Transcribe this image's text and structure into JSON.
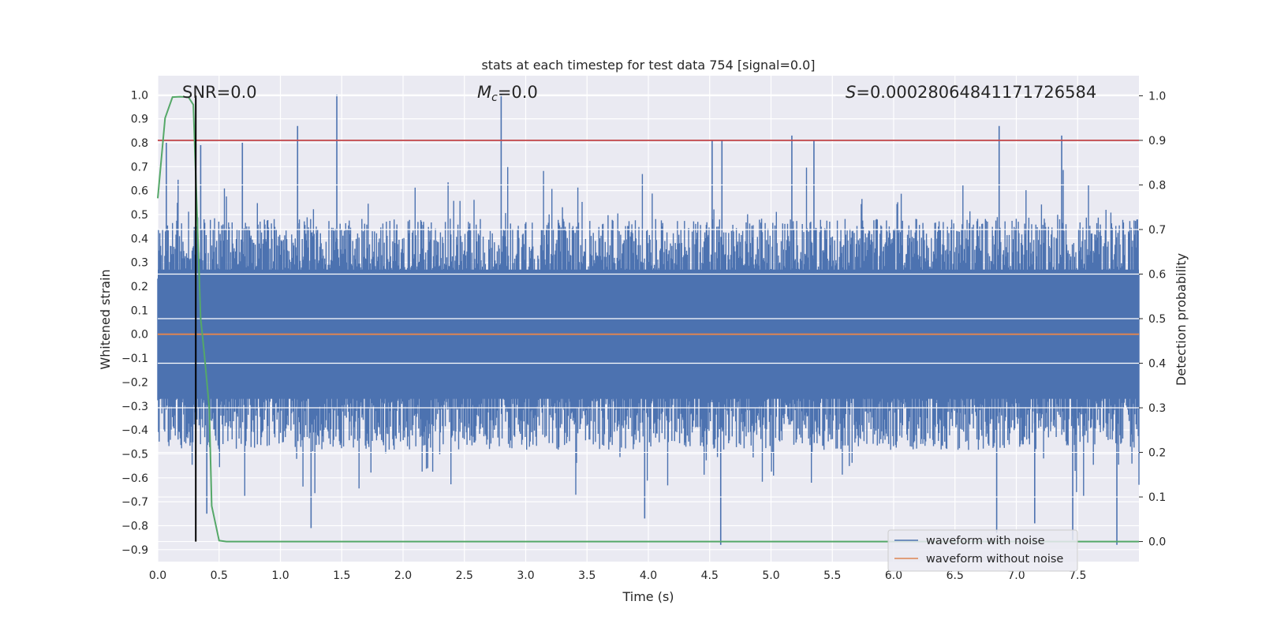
{
  "chart_data": {
    "type": "line",
    "title": "stats at each timestep for test data 754 [signal=0.0]",
    "xlabel": "Time (s)",
    "ylabel": "Whitened strain",
    "ylabel_right": "Detection probability",
    "xlim": [
      0.0,
      8.0
    ],
    "ylim": [
      -0.95,
      1.08
    ],
    "ylim_right": [
      -0.045,
      1.045
    ],
    "x_ticks": [
      "0.0",
      "0.5",
      "1.0",
      "1.5",
      "2.0",
      "2.5",
      "3.0",
      "3.5",
      "4.0",
      "4.5",
      "5.0",
      "5.5",
      "6.0",
      "6.5",
      "7.0",
      "7.5"
    ],
    "y_ticks": [
      "−0.9",
      "−0.8",
      "−0.7",
      "−0.6",
      "−0.5",
      "−0.4",
      "−0.3",
      "−0.2",
      "−0.1",
      "0.0",
      "0.1",
      "0.2",
      "0.3",
      "0.4",
      "0.5",
      "0.6",
      "0.7",
      "0.8",
      "0.9",
      "1.0"
    ],
    "y_ticks_right": [
      "0.0",
      "0.1",
      "0.2",
      "0.3",
      "0.4",
      "0.5",
      "0.6",
      "0.7",
      "0.8",
      "0.9",
      "1.0"
    ],
    "annotations": {
      "snr": "SNR=0.0",
      "mc_symbol": "M",
      "mc_sub": "c",
      "mc_value": "=0.0",
      "s_symbol": "S",
      "s_value": "=0.00028064841171726584"
    },
    "series": [
      {
        "name": "waveform with noise",
        "color": "#4c72b0",
        "axis": "left",
        "envelope": {
          "upper_typical": 0.42,
          "lower_typical": -0.42,
          "max": 1.0,
          "min": -0.9
        },
        "peaks": [
          {
            "x": 1.46,
            "y": 1.0
          },
          {
            "x": 2.8,
            "y": 1.0
          },
          {
            "x": 1.14,
            "y": 0.87
          },
          {
            "x": 6.86,
            "y": 0.87
          },
          {
            "x": 7.37,
            "y": 0.83
          },
          {
            "x": 4.52,
            "y": 0.81
          },
          {
            "x": 4.6,
            "y": 0.81
          },
          {
            "x": 5.17,
            "y": 0.83
          },
          {
            "x": 5.35,
            "y": 0.81
          },
          {
            "x": 0.07,
            "y": 0.8
          },
          {
            "x": 0.35,
            "y": 0.79
          },
          {
            "x": 0.69,
            "y": 0.8
          },
          {
            "x": 4.59,
            "y": -0.88
          },
          {
            "x": 7.82,
            "y": -0.88
          },
          {
            "x": 1.25,
            "y": -0.81
          },
          {
            "x": 6.84,
            "y": -0.83
          },
          {
            "x": 7.46,
            "y": -0.86
          },
          {
            "x": 0.4,
            "y": -0.75
          },
          {
            "x": 3.97,
            "y": -0.77
          },
          {
            "x": 7.15,
            "y": -0.79
          }
        ]
      },
      {
        "name": "waveform without noise",
        "color": "#dd8452",
        "axis": "left",
        "x": [
          0.0,
          8.0
        ],
        "y": [
          0.0,
          0.0
        ]
      },
      {
        "name": "detection probability",
        "color": "#55a868",
        "axis": "right",
        "x": [
          0.0,
          0.06,
          0.12,
          0.18,
          0.25,
          0.29,
          0.35,
          0.38,
          0.42,
          0.44,
          0.5,
          0.56,
          8.0
        ],
        "y": [
          0.77,
          0.95,
          0.997,
          0.998,
          0.997,
          0.98,
          0.5,
          0.42,
          0.3,
          0.08,
          0.002,
          0.0,
          0.0
        ]
      }
    ],
    "threshold": {
      "value": 0.9,
      "axis": "right",
      "color": "#c44e52"
    },
    "marker_time": {
      "x": 0.31,
      "color": "#000000"
    },
    "legend": {
      "position": "lower-right",
      "entries": [
        {
          "label": "waveform with noise",
          "color": "#4c72b0"
        },
        {
          "label": "waveform without noise",
          "color": "#dd8452"
        }
      ]
    }
  }
}
